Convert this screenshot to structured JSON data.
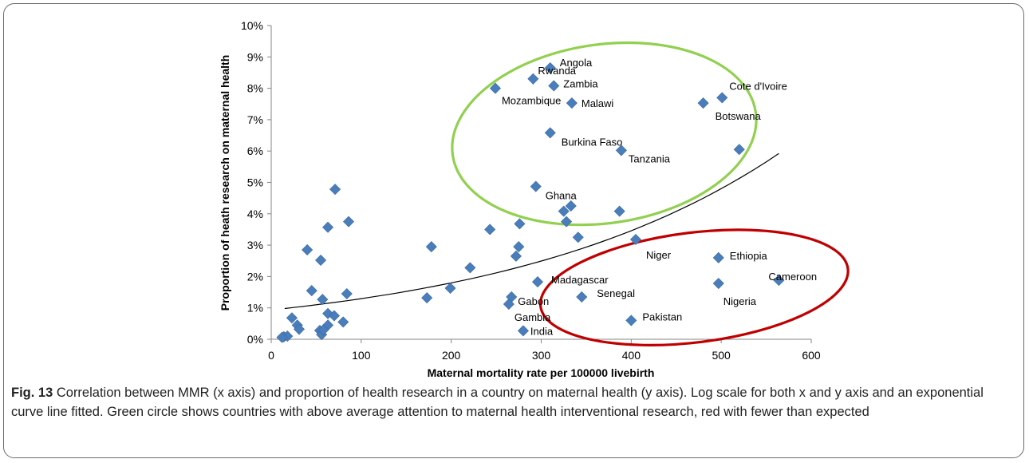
{
  "chart_data": {
    "type": "scatter",
    "title": "",
    "xlabel": "Maternal mortality rate per 100000 livebirth",
    "ylabel": "Proportion of heath research on maternal health",
    "xlim": [
      0,
      600
    ],
    "ylim": [
      0,
      10
    ],
    "x_ticks": [
      "0",
      "100",
      "200",
      "300",
      "400",
      "500",
      "600"
    ],
    "y_ticks": [
      "0%",
      "1%",
      "2%",
      "3%",
      "4%",
      "5%",
      "6%",
      "7%",
      "8%",
      "9%",
      "10%"
    ],
    "grid": false,
    "marker_color": "#4a7ebb",
    "points": [
      {
        "x": 310,
        "y": 8.65,
        "label": "Angola"
      },
      {
        "x": 291,
        "y": 8.3,
        "label": "Rwanda"
      },
      {
        "x": 314,
        "y": 8.08,
        "label": "Zambia"
      },
      {
        "x": 249,
        "y": 8.0,
        "label": "Mozambique"
      },
      {
        "x": 334,
        "y": 7.53,
        "label": "Malawi"
      },
      {
        "x": 501,
        "y": 7.7,
        "label": "Cote d'Ivoire"
      },
      {
        "x": 480,
        "y": 7.53,
        "label": "Botswana"
      },
      {
        "x": 310,
        "y": 6.58,
        "label": "Burkina Faso"
      },
      {
        "x": 389,
        "y": 6.02,
        "label": "Tanzania"
      },
      {
        "x": 294,
        "y": 4.87,
        "label": "Ghana"
      },
      {
        "x": 405,
        "y": 3.18,
        "label": "Niger"
      },
      {
        "x": 497,
        "y": 2.6,
        "label": "Ethiopia"
      },
      {
        "x": 564,
        "y": 1.88,
        "label": "Cameroon"
      },
      {
        "x": 296,
        "y": 1.83,
        "label": "Madagascar"
      },
      {
        "x": 497,
        "y": 1.78,
        "label": "Nigeria"
      },
      {
        "x": 267,
        "y": 1.35,
        "label": "Gabon"
      },
      {
        "x": 345,
        "y": 1.35,
        "label": "Senegal"
      },
      {
        "x": 264,
        "y": 1.12,
        "label": "Gambia"
      },
      {
        "x": 400,
        "y": 0.6,
        "label": "Pakistan"
      },
      {
        "x": 280,
        "y": 0.27,
        "label": "India"
      },
      {
        "x": 520,
        "y": 6.05
      },
      {
        "x": 387,
        "y": 4.08
      },
      {
        "x": 333,
        "y": 4.25
      },
      {
        "x": 325,
        "y": 4.08
      },
      {
        "x": 328,
        "y": 3.75
      },
      {
        "x": 341,
        "y": 3.25
      },
      {
        "x": 276,
        "y": 3.68
      },
      {
        "x": 275,
        "y": 2.95
      },
      {
        "x": 272,
        "y": 2.65
      },
      {
        "x": 243,
        "y": 3.5
      },
      {
        "x": 178,
        "y": 2.95
      },
      {
        "x": 221,
        "y": 2.28
      },
      {
        "x": 199,
        "y": 1.63
      },
      {
        "x": 173,
        "y": 1.32
      },
      {
        "x": 71,
        "y": 4.78
      },
      {
        "x": 86,
        "y": 3.75
      },
      {
        "x": 63,
        "y": 3.57
      },
      {
        "x": 40,
        "y": 2.85
      },
      {
        "x": 55,
        "y": 2.52
      },
      {
        "x": 84,
        "y": 1.45
      },
      {
        "x": 45,
        "y": 1.55
      },
      {
        "x": 57,
        "y": 1.27
      },
      {
        "x": 63,
        "y": 0.82
      },
      {
        "x": 70,
        "y": 0.75
      },
      {
        "x": 80,
        "y": 0.55
      },
      {
        "x": 63,
        "y": 0.45
      },
      {
        "x": 23,
        "y": 0.68
      },
      {
        "x": 29,
        "y": 0.45
      },
      {
        "x": 31,
        "y": 0.32
      },
      {
        "x": 54,
        "y": 0.28
      },
      {
        "x": 56,
        "y": 0.15
      },
      {
        "x": 58,
        "y": 0.3
      },
      {
        "x": 14,
        "y": 0.08
      },
      {
        "x": 18,
        "y": 0.1
      },
      {
        "x": 12,
        "y": 0.06
      }
    ],
    "trendline": {
      "type": "exponential",
      "x_from": 15,
      "x_to": 564,
      "y_from": 0.98,
      "y_to": 5.92,
      "color": "#000000"
    },
    "annotations": [
      {
        "shape": "ellipse",
        "color": "#92d050",
        "cx": 370,
        "cy": 6.55,
        "rx": 170,
        "ry": 2.85,
        "rotate": -8
      },
      {
        "shape": "ellipse",
        "color": "#c00000",
        "cx": 470,
        "cy": 1.65,
        "rx": 172,
        "ry": 1.75,
        "rotate": -7
      }
    ]
  },
  "caption": {
    "label": "Fig. 13",
    "text": " Correlation between MMR (x axis) and proportion of health research in a country on maternal health (y axis). Log scale for both x and y axis and an exponential curve line fitted. Green circle shows countries with above average attention to maternal health interventional research, red with fewer than expected"
  }
}
